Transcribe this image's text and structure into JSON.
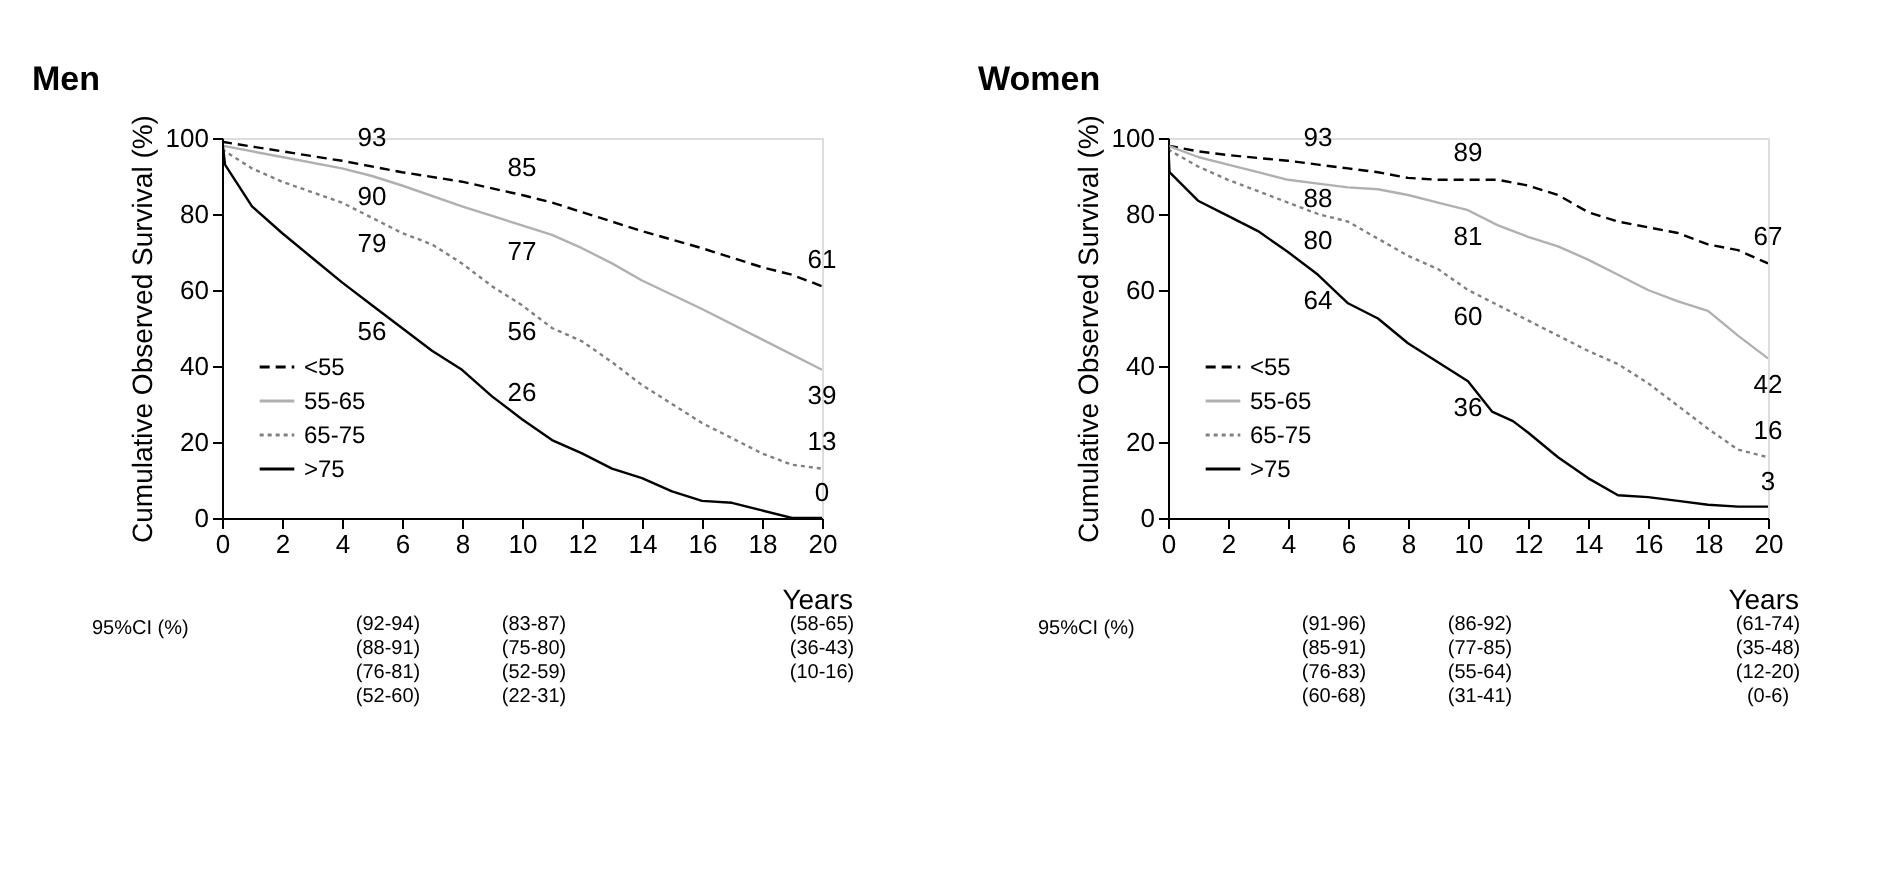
{
  "chart_data": [
    {
      "type": "line",
      "title": "Men",
      "xlabel": "Years",
      "ylabel": "Cumulative Observed Survival (%)",
      "xlim": [
        0,
        20
      ],
      "xticks": [
        0,
        2,
        4,
        6,
        8,
        10,
        12,
        14,
        16,
        18,
        20
      ],
      "ylim": [
        0,
        100
      ],
      "yticks": [
        0,
        20,
        40,
        60,
        80,
        100
      ],
      "grid": false,
      "legend": "bottom left",
      "series": [
        {
          "name": "<55",
          "color": "#000000",
          "line_style": "dashed",
          "x": [
            0,
            2,
            4,
            6,
            8,
            10,
            11,
            12,
            14,
            16,
            18,
            19,
            20
          ],
          "values": [
            99,
            96.5,
            94,
            91,
            88.5,
            85,
            83,
            80.5,
            75.5,
            71,
            66,
            64,
            61
          ]
        },
        {
          "name": "55-65",
          "color": "#b0b0b0",
          "line_style": "solid",
          "x": [
            0,
            2,
            4,
            5,
            6,
            8,
            10,
            11,
            12,
            13,
            14,
            16,
            18,
            20
          ],
          "values": [
            98,
            95,
            92,
            90,
            87.5,
            82,
            77,
            74.5,
            71,
            67,
            62.5,
            55,
            47,
            39
          ]
        },
        {
          "name": "65-75",
          "color": "#808080",
          "line_style": "dotted",
          "x": [
            0,
            1,
            2,
            4,
            5,
            6,
            7,
            8,
            9,
            10,
            11,
            12,
            13,
            14,
            15,
            16,
            17,
            18,
            19,
            20
          ],
          "values": [
            97,
            92,
            88.5,
            83,
            79,
            75,
            72,
            67,
            61,
            56,
            50,
            46.5,
            41,
            35,
            30,
            25,
            21,
            17,
            14,
            13
          ]
        },
        {
          "name": ">75",
          "color": "#000000",
          "line_style": "solid",
          "x": [
            0,
            0.1,
            1,
            2,
            3,
            4,
            5,
            6,
            7,
            8,
            9,
            10,
            11,
            12,
            13,
            14,
            15,
            16,
            17,
            18,
            19,
            20
          ],
          "values": [
            100,
            93,
            82,
            75,
            68.5,
            62,
            56,
            50,
            44,
            39,
            32,
            26,
            20.5,
            17,
            13,
            10.5,
            7,
            4.5,
            4,
            2,
            0,
            0
          ]
        }
      ],
      "annotations": [
        {
          "text": "93",
          "x": 5,
          "y": 93
        },
        {
          "text": "90",
          "x": 5,
          "y": 90
        },
        {
          "text": "79",
          "x": 5,
          "y": 79
        },
        {
          "text": "56",
          "x": 5,
          "y": 56
        },
        {
          "text": "85",
          "x": 10,
          "y": 85
        },
        {
          "text": "77",
          "x": 10,
          "y": 77
        },
        {
          "text": "56",
          "x": 10,
          "y": 56
        },
        {
          "text": "26",
          "x": 10,
          "y": 26
        },
        {
          "text": "61",
          "x": 20,
          "y": 61
        },
        {
          "text": "39",
          "x": 20,
          "y": 39
        },
        {
          "text": "13",
          "x": 20,
          "y": 13
        },
        {
          "text": "0",
          "x": 20,
          "y": 0
        },
        "95%CI (%)",
        "(92-94)\n(88-91)\n(76-81)\n(52-60)",
        "(83-87)\n(75-80)\n(52-59)\n(22-31)",
        "(58-65)\n(36-43)\n(10-16)"
      ]
    },
    {
      "type": "line",
      "title": "Women",
      "xlabel": "Years",
      "ylabel": "Cumulative Observed Survival (%)",
      "xlim": [
        0,
        20
      ],
      "xticks": [
        0,
        2,
        4,
        6,
        8,
        10,
        12,
        14,
        16,
        18,
        20
      ],
      "ylim": [
        0,
        100
      ],
      "yticks": [
        0,
        20,
        40,
        60,
        80,
        100
      ],
      "grid": false,
      "legend": "bottom left",
      "series": [
        {
          "name": "<55",
          "color": "#000000",
          "line_style": "dashed",
          "x": [
            0,
            1,
            2,
            4,
            5,
            6,
            7,
            8,
            9,
            10,
            11,
            12,
            13,
            14,
            15,
            16,
            17,
            18,
            19,
            20
          ],
          "values": [
            98,
            96.5,
            95.5,
            94,
            93,
            92,
            91,
            89.5,
            89,
            89,
            89,
            87.5,
            85,
            80.5,
            78,
            76.5,
            75,
            72,
            70.5,
            67
          ]
        },
        {
          "name": "55-65",
          "color": "#b0b0b0",
          "line_style": "solid",
          "x": [
            0,
            1,
            2,
            3,
            4,
            5,
            6,
            7,
            8,
            9,
            10,
            11,
            12,
            13,
            14,
            15,
            16,
            17,
            18,
            19,
            20
          ],
          "values": [
            98,
            95,
            93,
            91,
            89,
            88,
            87,
            86.5,
            85,
            83,
            81,
            77,
            74,
            71.5,
            68,
            64,
            60,
            57,
            54.5,
            48,
            42
          ]
        },
        {
          "name": "65-75",
          "color": "#808080",
          "line_style": "dotted",
          "x": [
            0,
            1,
            2,
            3,
            4,
            5,
            6,
            7,
            8,
            9,
            10,
            11,
            12,
            13,
            14,
            15,
            16,
            17,
            18,
            19,
            20
          ],
          "values": [
            97,
            92.5,
            89,
            86,
            83,
            80,
            78,
            73.5,
            69,
            65.5,
            60,
            56,
            52,
            48,
            44,
            40.5,
            35.5,
            29.5,
            23.5,
            18,
            16
          ]
        },
        {
          "name": ">75",
          "color": "#000000",
          "line_style": "solid",
          "x": [
            0,
            0.05,
            1,
            2,
            3,
            4,
            5,
            6,
            7,
            8,
            9,
            10,
            10.8,
            11.5,
            12,
            13,
            14,
            15,
            16,
            17,
            18,
            19,
            20
          ],
          "values": [
            100,
            91,
            83.5,
            79.5,
            75.5,
            70,
            64,
            56.5,
            52.5,
            46,
            41,
            36,
            28,
            25.5,
            22.5,
            16,
            10.5,
            6,
            5.5,
            4.5,
            3.5,
            3,
            3
          ]
        }
      ],
      "annotations": [
        {
          "text": "93",
          "x": 5,
          "y": 93
        },
        {
          "text": "88",
          "x": 5,
          "y": 88
        },
        {
          "text": "80",
          "x": 5,
          "y": 80
        },
        {
          "text": "64",
          "x": 5,
          "y": 64
        },
        {
          "text": "89",
          "x": 10,
          "y": 89
        },
        {
          "text": "81",
          "x": 10,
          "y": 81
        },
        {
          "text": "60",
          "x": 10,
          "y": 60
        },
        {
          "text": "36",
          "x": 10,
          "y": 36
        },
        {
          "text": "67",
          "x": 20,
          "y": 67
        },
        {
          "text": "42",
          "x": 20,
          "y": 42
        },
        {
          "text": "16",
          "x": 20,
          "y": 16
        },
        {
          "text": "3",
          "x": 20,
          "y": 3
        },
        "95%CI (%)",
        "(91-96)\n(85-91)\n(76-83)\n(60-68)",
        "(86-92)\n(77-85)\n(55-64)\n(31-41)",
        "(61-74)\n(35-48)\n(12-20)\n(0-6)"
      ]
    }
  ]
}
